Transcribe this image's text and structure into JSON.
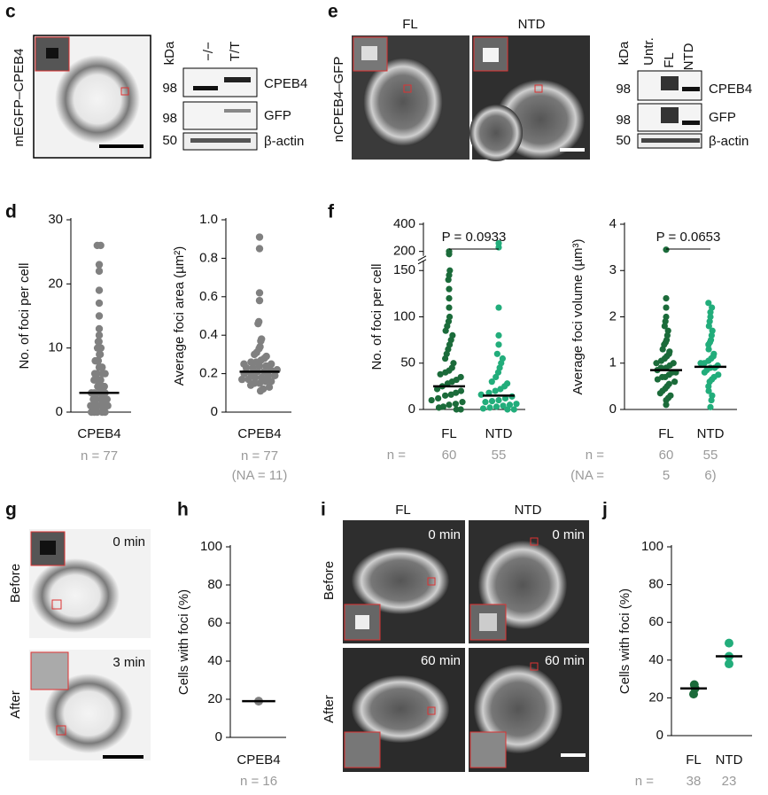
{
  "panel_letters": [
    "c",
    "d",
    "e",
    "f",
    "g",
    "h",
    "i",
    "j"
  ],
  "panel_c": {
    "ylabel": "mEGFP–CPEB4",
    "kda": "kDa",
    "lanes": [
      "−/−",
      "T/T"
    ],
    "markers": [
      "98",
      "98",
      "50"
    ],
    "bands": [
      "CPEB4",
      "GFP",
      "β-actin"
    ]
  },
  "panel_e": {
    "columns": [
      "FL",
      "NTD"
    ],
    "ylabel": "nCPEB4–GFP",
    "kda": "kDa",
    "lanes": [
      "Untr.",
      "FL",
      "NTD"
    ],
    "markers": [
      "98",
      "98",
      "50"
    ],
    "bands": [
      "CPEB4",
      "GFP",
      "β-actin"
    ]
  },
  "panel_g": {
    "rows": [
      "Before",
      "After"
    ],
    "times": [
      "0 min",
      "3 min"
    ]
  },
  "panel_i": {
    "columns": [
      "FL",
      "NTD"
    ],
    "rows": [
      "Before",
      "After"
    ],
    "times": [
      "0 min",
      "0 min",
      "60 min",
      "60 min"
    ]
  },
  "chart_data": [
    {
      "type": "strip",
      "ylabel": "No. of foci per cell",
      "categories": [
        "CPEB4"
      ],
      "colors": [
        "#808080"
      ],
      "values": [
        [
          26,
          26,
          23,
          22,
          19,
          17,
          15,
          13,
          12,
          11,
          11,
          10,
          10,
          9,
          9,
          8,
          8,
          8,
          7,
          7,
          7,
          6,
          6,
          6,
          6,
          5,
          5,
          5,
          5,
          4,
          4,
          4,
          4,
          3,
          3,
          3,
          3,
          3,
          2,
          2,
          2,
          2,
          2,
          1,
          1,
          1,
          1,
          1,
          1,
          0,
          0,
          0,
          0,
          0
        ]
      ],
      "medians": [
        3
      ],
      "ylim": [
        0,
        30
      ],
      "yticks": [
        0,
        10,
        20,
        30
      ],
      "n_row": [
        "n = 77"
      ]
    },
    {
      "type": "strip",
      "ylabel": "Average foci area (µm²)",
      "categories": [
        "CPEB4"
      ],
      "colors": [
        "#808080"
      ],
      "values": [
        [
          0.91,
          0.85,
          0.62,
          0.58,
          0.47,
          0.46,
          0.38,
          0.37,
          0.34,
          0.33,
          0.31,
          0.3,
          0.29,
          0.28,
          0.27,
          0.26,
          0.26,
          0.25,
          0.25,
          0.24,
          0.24,
          0.23,
          0.23,
          0.22,
          0.22,
          0.21,
          0.21,
          0.2,
          0.2,
          0.19,
          0.19,
          0.18,
          0.18,
          0.17,
          0.17,
          0.16,
          0.16,
          0.15,
          0.15,
          0.14,
          0.13,
          0.12,
          0.11
        ]
      ],
      "medians": [
        0.21
      ],
      "ylim": [
        0,
        1
      ],
      "yticks": [
        0,
        0.2,
        0.4,
        0.6,
        0.8,
        {
          "value": 1,
          "label": "1.0"
        }
      ],
      "n_row": [
        "n = 77"
      ],
      "na_row": [
        "(NA = 11)"
      ]
    },
    {
      "type": "strip",
      "ylabel": "No. of foci per cell",
      "categories": [
        "FL",
        "NTD"
      ],
      "colors": [
        "#1b6b3a",
        "#22ad7b"
      ],
      "values": [
        [
          200,
          180,
          150,
          145,
          140,
          130,
          120,
          110,
          100,
          95,
          90,
          85,
          80,
          75,
          70,
          65,
          60,
          55,
          50,
          45,
          42,
          40,
          38,
          35,
          32,
          30,
          28,
          25,
          22,
          20,
          18,
          16,
          15,
          12,
          10,
          8,
          6,
          5,
          3,
          2,
          0,
          0
        ],
        [
          260,
          230,
          110,
          80,
          70,
          60,
          55,
          50,
          45,
          40,
          35,
          30,
          28,
          25,
          22,
          20,
          18,
          16,
          14,
          12,
          10,
          9,
          8,
          6,
          5,
          4,
          3,
          2,
          1,
          0,
          0
        ]
      ],
      "medians": [
        25,
        15
      ],
      "ylim": [
        0,
        400
      ],
      "ybreak": 160,
      "yticks": [
        0,
        50,
        100,
        150,
        200,
        400
      ],
      "annotation": "P = 0.0933",
      "n_row": [
        "n =",
        "60",
        "55"
      ]
    },
    {
      "type": "strip",
      "ylabel": "Average foci volume (µm³)",
      "categories": [
        "FL",
        "NTD"
      ],
      "colors": [
        "#1b6b3a",
        "#22ad7b"
      ],
      "values": [
        [
          3.45,
          2.4,
          2.2,
          2.0,
          1.9,
          1.8,
          1.7,
          1.6,
          1.5,
          1.45,
          1.4,
          1.3,
          1.25,
          1.2,
          1.15,
          1.1,
          1.05,
          1.0,
          1.0,
          0.95,
          0.9,
          0.9,
          0.85,
          0.8,
          0.8,
          0.75,
          0.7,
          0.7,
          0.65,
          0.6,
          0.55,
          0.5,
          0.45,
          0.4,
          0.35,
          0.3,
          0.25,
          0.2,
          0.1
        ],
        [
          2.3,
          2.2,
          2.1,
          2.0,
          1.9,
          1.8,
          1.7,
          1.6,
          1.5,
          1.45,
          1.4,
          1.3,
          1.2,
          1.15,
          1.1,
          1.05,
          1.0,
          1.0,
          0.95,
          0.9,
          0.9,
          0.85,
          0.8,
          0.75,
          0.7,
          0.65,
          0.6,
          0.5,
          0.4,
          0.3,
          0.2,
          0.05
        ]
      ],
      "medians": [
        0.85,
        0.92
      ],
      "ylim": [
        0,
        4
      ],
      "yticks": [
        0,
        1,
        2,
        3,
        4
      ],
      "annotation": "P = 0.0653",
      "n_row": [
        "n =",
        "60",
        "55"
      ],
      "na_row": [
        "(NA =",
        "5",
        "6)"
      ]
    },
    {
      "type": "strip",
      "ylabel": "Cells with foci (%)",
      "categories": [
        "CPEB4"
      ],
      "colors": [
        "#808080"
      ],
      "values": [
        [
          19
        ]
      ],
      "medians": [
        19
      ],
      "ylim": [
        0,
        100
      ],
      "yticks": [
        0,
        20,
        40,
        60,
        80,
        100
      ],
      "n_row": [
        "n = 16"
      ]
    },
    {
      "type": "strip",
      "ylabel": "Cells with foci (%)",
      "categories": [
        "FL",
        "NTD"
      ],
      "colors": [
        "#1b6b3a",
        "#22ad7b"
      ],
      "values": [
        [
          22,
          25,
          27
        ],
        [
          38,
          42,
          49
        ]
      ],
      "medians": [
        25,
        42
      ],
      "ylim": [
        0,
        100
      ],
      "yticks": [
        0,
        20,
        40,
        60,
        80,
        100
      ],
      "n_row": [
        "n =",
        "38",
        "23"
      ]
    }
  ]
}
